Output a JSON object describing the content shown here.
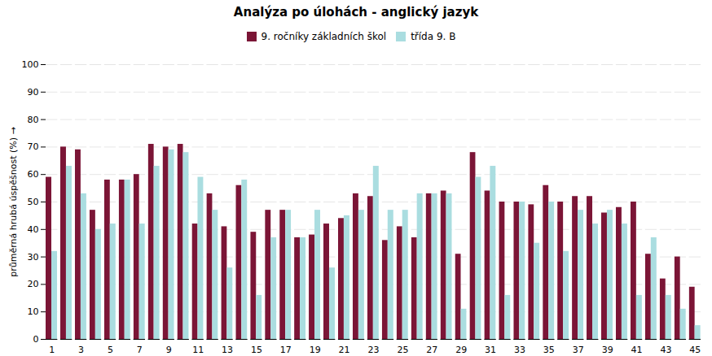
{
  "chart_data": {
    "type": "bar",
    "title": "Analýza po úlohách - anglický jazyk",
    "ylabel": "průměrná hrubá úspěšnost (%)",
    "categories": [
      "1",
      null,
      "3",
      null,
      "5",
      null,
      "7",
      null,
      "9",
      null,
      "11",
      null,
      "13",
      null,
      "15",
      null,
      "17",
      null,
      "19",
      null,
      "21",
      null,
      "23",
      null,
      "25",
      null,
      "27",
      null,
      "29",
      null,
      "31",
      null,
      "33",
      null,
      "35",
      null,
      "37",
      null,
      "39",
      null,
      "41",
      null,
      "43",
      null,
      "45"
    ],
    "series": [
      {
        "name": "9. ročníky základních škol",
        "color": "#7B1536",
        "values": [
          59,
          70,
          69,
          47,
          58,
          58,
          60,
          71,
          70,
          71,
          42,
          53,
          41,
          56,
          39,
          47,
          47,
          37,
          38,
          42,
          44,
          53,
          52,
          36,
          41,
          37,
          53,
          54,
          31,
          68,
          54,
          50,
          50,
          49,
          56,
          50,
          52,
          52,
          46,
          48,
          50,
          31,
          22,
          30,
          19
        ]
      },
      {
        "name": "třída  9. B",
        "color": "#AADDE0",
        "values": [
          32,
          63,
          53,
          40,
          42,
          58,
          42,
          63,
          69,
          68,
          59,
          47,
          26,
          58,
          16,
          37,
          47,
          37,
          47,
          26,
          45,
          47,
          63,
          47,
          47,
          53,
          53,
          53,
          11,
          59,
          63,
          16,
          50,
          35,
          50,
          32,
          47,
          42,
          47,
          42,
          16,
          37,
          16,
          11,
          5
        ]
      }
    ],
    "ylim": [
      0,
      100
    ],
    "yticks": [
      0,
      10,
      20,
      30,
      40,
      50,
      60,
      70,
      80,
      90,
      100
    ],
    "grid": true,
    "legend": "top"
  }
}
